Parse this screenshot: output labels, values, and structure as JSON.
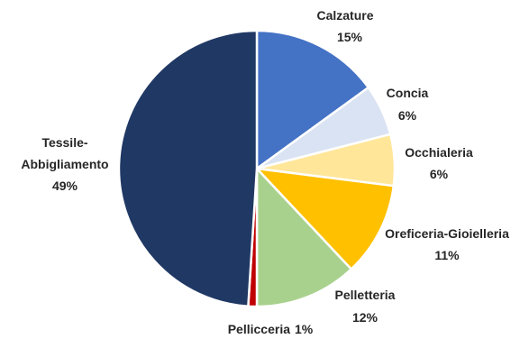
{
  "chart_data": {
    "type": "pie",
    "start_angle_deg": 0,
    "direction": "clockwise",
    "slices": [
      {
        "name": "Calzature",
        "value": 15,
        "value_label": "15%",
        "color": "#4472C4"
      },
      {
        "name": "Concia",
        "value": 6,
        "value_label": "6%",
        "color": "#DAE3F3"
      },
      {
        "name": "Occhialeria",
        "value": 6,
        "value_label": "6%",
        "color": "#FFE699"
      },
      {
        "name": "Oreficeria-Gioielleria",
        "value": 11,
        "value_label": "11%",
        "color": "#FFC000"
      },
      {
        "name": "Pelletteria",
        "value": 12,
        "value_label": "12%",
        "color": "#A9D18E"
      },
      {
        "name": "Pellicceria",
        "value": 1,
        "value_label": "1%",
        "color": "#C00000"
      },
      {
        "name": "Tessile-Abbigliamento",
        "name_lines": [
          "Tessile-",
          "Abbigliamento"
        ],
        "value": 49,
        "value_label": "49%",
        "color": "#203864"
      }
    ]
  }
}
